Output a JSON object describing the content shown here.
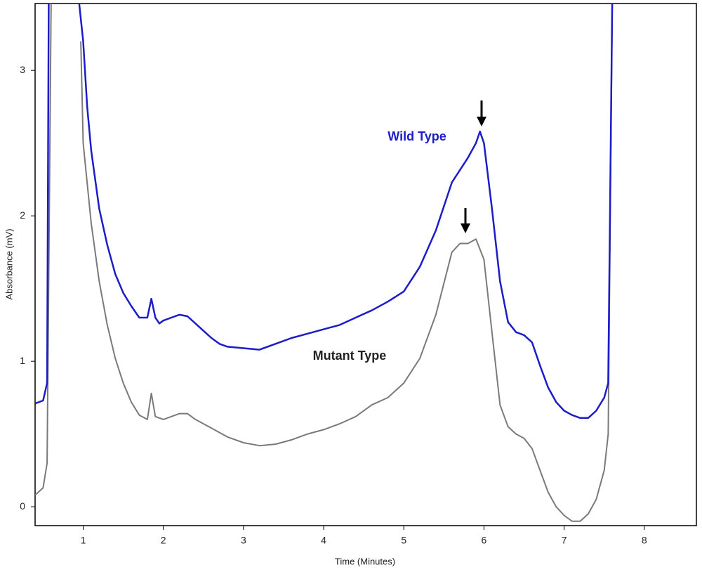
{
  "chart_data": {
    "type": "line",
    "x_label": "Time (Minutes)",
    "y_label": "Absorbance (mV)",
    "xlim": [
      0.4,
      8.65
    ],
    "ylim": [
      -0.13,
      3.46
    ],
    "xticks": [
      1,
      2,
      3,
      4,
      5,
      6,
      7,
      8
    ],
    "yticks": [
      0,
      1,
      2,
      3
    ],
    "grid": false,
    "series": [
      {
        "name": "Wild Type",
        "color": "#1c1cc8",
        "x": [
          0.4,
          0.5,
          0.55,
          0.57,
          0.75,
          0.95,
          1.0,
          1.05,
          1.1,
          1.2,
          1.3,
          1.4,
          1.5,
          1.6,
          1.7,
          1.8,
          1.85,
          1.9,
          1.95,
          2.0,
          2.1,
          2.2,
          2.3,
          2.4,
          2.5,
          2.6,
          2.7,
          2.8,
          3.0,
          3.2,
          3.4,
          3.6,
          3.8,
          4.0,
          4.2,
          4.4,
          4.6,
          4.8,
          5.0,
          5.2,
          5.4,
          5.6,
          5.8,
          5.9,
          5.95,
          6.0,
          6.1,
          6.2,
          6.3,
          6.4,
          6.5,
          6.6,
          6.7,
          6.8,
          6.9,
          7.0,
          7.1,
          7.2,
          7.3,
          7.4,
          7.5,
          7.55,
          7.6
        ],
        "values": [
          0.71,
          0.73,
          0.85,
          3.46,
          null,
          3.46,
          3.2,
          2.75,
          2.45,
          2.05,
          1.8,
          1.6,
          1.47,
          1.38,
          1.3,
          1.3,
          1.43,
          1.3,
          1.26,
          1.28,
          1.3,
          1.32,
          1.31,
          1.26,
          1.21,
          1.16,
          1.12,
          1.1,
          1.09,
          1.08,
          1.12,
          1.16,
          1.19,
          1.22,
          1.25,
          1.3,
          1.35,
          1.41,
          1.48,
          1.65,
          1.9,
          2.23,
          2.4,
          2.5,
          2.58,
          2.5,
          2.05,
          1.55,
          1.27,
          1.2,
          1.18,
          1.13,
          0.97,
          0.82,
          0.72,
          0.66,
          0.63,
          0.61,
          0.61,
          0.66,
          0.75,
          0.85,
          3.46
        ]
      },
      {
        "name": "Mutant Type",
        "color": "#7a7a7a",
        "x": [
          0.4,
          0.5,
          0.55,
          0.6,
          0.75,
          0.97,
          1.0,
          1.1,
          1.2,
          1.3,
          1.4,
          1.5,
          1.6,
          1.7,
          1.8,
          1.85,
          1.9,
          2.0,
          2.1,
          2.2,
          2.3,
          2.4,
          2.6,
          2.8,
          3.0,
          3.2,
          3.4,
          3.6,
          3.8,
          4.0,
          4.2,
          4.4,
          4.6,
          4.8,
          5.0,
          5.2,
          5.4,
          5.6,
          5.7,
          5.8,
          5.9,
          6.0,
          6.1,
          6.2,
          6.3,
          6.4,
          6.5,
          6.6,
          6.7,
          6.8,
          6.9,
          7.0,
          7.1,
          7.2,
          7.3,
          7.4,
          7.5,
          7.55,
          7.6
        ],
        "values": [
          0.08,
          0.13,
          0.3,
          3.46,
          null,
          3.2,
          2.5,
          1.95,
          1.55,
          1.25,
          1.02,
          0.85,
          0.72,
          0.63,
          0.6,
          0.78,
          0.62,
          0.6,
          0.62,
          0.64,
          0.64,
          0.6,
          0.54,
          0.48,
          0.44,
          0.42,
          0.43,
          0.46,
          0.5,
          0.53,
          0.57,
          0.62,
          0.7,
          0.75,
          0.85,
          1.02,
          1.32,
          1.75,
          1.81,
          1.81,
          1.84,
          1.7,
          1.2,
          0.7,
          0.55,
          0.5,
          0.47,
          0.4,
          0.25,
          0.1,
          0.0,
          -0.06,
          -0.1,
          -0.1,
          -0.05,
          0.05,
          0.25,
          0.5,
          3.46
        ]
      }
    ]
  }
}
